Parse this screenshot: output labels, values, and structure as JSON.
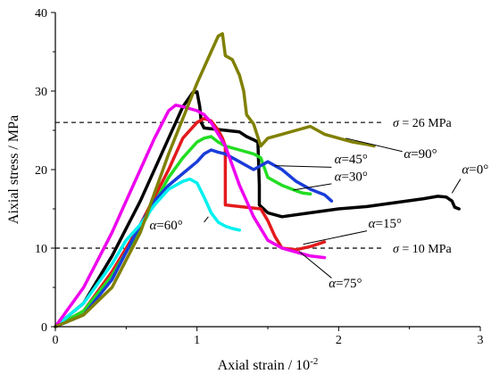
{
  "chart_data": {
    "type": "line",
    "xlabel": "Axial strain / 10",
    "xlabel_exp": "-2",
    "ylabel": "Aixial stress / MPa",
    "xlim": [
      0,
      3
    ],
    "ylim": [
      0,
      40
    ],
    "xticks": [
      "0",
      "1",
      "2",
      "3"
    ],
    "yticks": [
      "0",
      "10",
      "20",
      "30",
      "40"
    ],
    "grid": false,
    "reference_lines": [
      {
        "y": 26,
        "label_sym": "σ",
        "label_val": " = 26 MPa"
      },
      {
        "y": 10,
        "label_sym": "σ",
        "label_val": " = 10 MPa"
      }
    ],
    "series": [
      {
        "name_sym": "α",
        "name_val": "=0°",
        "color": "#000000",
        "x": [
          0,
          0.2,
          0.4,
          0.6,
          0.8,
          0.9,
          0.97,
          1.0,
          1.02,
          1.03,
          1.05,
          1.1,
          1.2,
          1.3,
          1.35,
          1.4,
          1.43,
          1.44,
          1.44,
          1.5,
          1.6,
          1.8,
          2.0,
          2.2,
          2.4,
          2.6,
          2.7,
          2.76,
          2.8,
          2.82,
          2.85
        ],
        "y": [
          0,
          3,
          9,
          16,
          24,
          28,
          29.8,
          29.9,
          28,
          26,
          25.3,
          25.2,
          25,
          24.8,
          24.2,
          23.8,
          23.5,
          18,
          15.5,
          14.5,
          14.0,
          14.5,
          15.0,
          15.3,
          15.8,
          16.3,
          16.6,
          16.5,
          16.0,
          15.2,
          15.0
        ],
        "label_x": 2.87,
        "label_y": 19.5
      },
      {
        "name_sym": "α",
        "name_val": "=15°",
        "color": "#e31a1c",
        "x": [
          0,
          0.2,
          0.4,
          0.6,
          0.8,
          0.9,
          1.0,
          1.05,
          1.1,
          1.15,
          1.18,
          1.2,
          1.2,
          1.25,
          1.3,
          1.45,
          1.5,
          1.55,
          1.6,
          1.7,
          1.8,
          1.85,
          1.9
        ],
        "y": [
          0,
          2,
          7,
          13,
          20,
          24,
          26,
          26.5,
          26.2,
          25,
          24,
          23,
          15.5,
          15.4,
          15.3,
          15.0,
          13.5,
          11.5,
          10.0,
          9.8,
          10.2,
          10.5,
          10.8
        ],
        "label_x": 2.21,
        "label_y": 12.6
      },
      {
        "name_sym": "α",
        "name_val": "=30°",
        "color": "#22dd22",
        "x": [
          0,
          0.2,
          0.4,
          0.6,
          0.8,
          0.9,
          1.0,
          1.05,
          1.1,
          1.15,
          1.2,
          1.3,
          1.4,
          1.45,
          1.5,
          1.55,
          1.6,
          1.7,
          1.75,
          1.8
        ],
        "y": [
          0,
          2,
          6.5,
          12.5,
          19,
          21.5,
          23.5,
          24,
          24.2,
          23.5,
          23,
          22.5,
          22,
          21.5,
          19,
          18.5,
          18.0,
          17.3,
          17.0,
          16.9
        ],
        "label_x": 1.97,
        "label_y": 18.6
      },
      {
        "name_sym": "α",
        "name_val": "=45°",
        "color": "#1a3cd8",
        "x": [
          0,
          0.2,
          0.4,
          0.6,
          0.7,
          0.8,
          0.9,
          1.0,
          1.05,
          1.1,
          1.15,
          1.2,
          1.25,
          1.3,
          1.35,
          1.4,
          1.5,
          1.6,
          1.7,
          1.8,
          1.9,
          1.95
        ],
        "y": [
          0,
          1.5,
          6,
          13,
          16,
          18,
          19.5,
          21,
          22,
          22.5,
          22.2,
          22.0,
          21.5,
          21.0,
          20.5,
          20.0,
          21.0,
          20.0,
          18.5,
          17.5,
          16.8,
          16.0
        ],
        "label_x": 1.97,
        "label_y": 20.8
      },
      {
        "name_sym": "α",
        "name_val": "=60°",
        "color": "#00f0f0",
        "x": [
          0,
          0.2,
          0.4,
          0.5,
          0.6,
          0.7,
          0.8,
          0.9,
          0.95,
          1.0,
          1.05,
          1.1,
          1.15,
          1.2,
          1.25,
          1.3
        ],
        "y": [
          0,
          3,
          8,
          11,
          13,
          15.5,
          17.5,
          18.5,
          18.8,
          18.3,
          16.5,
          14.5,
          13.3,
          12.8,
          12.5,
          12.3
        ],
        "label_x": 0.9,
        "label_y": 12.4
      },
      {
        "name_sym": "α",
        "name_val": "=75°",
        "color": "#ee00ee",
        "x": [
          0,
          0.2,
          0.4,
          0.5,
          0.6,
          0.7,
          0.8,
          0.85,
          0.9,
          1.0,
          1.05,
          1.1,
          1.2,
          1.3,
          1.35,
          1.4,
          1.5,
          1.6,
          1.7,
          1.8,
          1.9
        ],
        "y": [
          0,
          5,
          12,
          16,
          20,
          24,
          27.5,
          28.2,
          28.0,
          27.5,
          27.0,
          26.0,
          23.0,
          18.0,
          16.0,
          14.0,
          11.0,
          10.0,
          9.5,
          9.0,
          8.8
        ],
        "label_x": 1.93,
        "label_y": 5.0
      },
      {
        "name_sym": "α",
        "name_val": "=90°",
        "color": "#808000",
        "x": [
          0,
          0.2,
          0.4,
          0.6,
          0.8,
          1.0,
          1.1,
          1.15,
          1.18,
          1.2,
          1.25,
          1.3,
          1.33,
          1.35,
          1.4,
          1.45,
          1.5,
          1.6,
          1.7,
          1.8,
          1.9,
          2.0,
          2.1,
          2.2,
          2.25
        ],
        "y": [
          0,
          1.5,
          5,
          12,
          22,
          31,
          35,
          37,
          37.3,
          34.5,
          34.0,
          32.0,
          30.0,
          27.0,
          25.8,
          23.0,
          24.0,
          24.5,
          25.0,
          25.5,
          24.5,
          24.0,
          23.5,
          23.2,
          23.0
        ],
        "label_x": 2.46,
        "label_y": 21.5
      }
    ]
  }
}
